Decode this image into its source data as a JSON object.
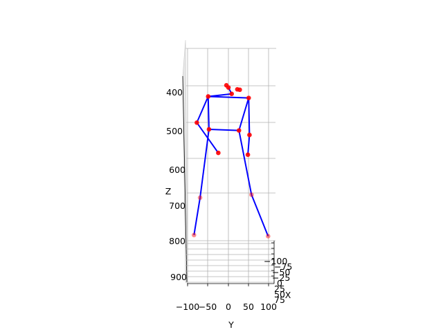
{
  "chart_data": {
    "type": "scatter",
    "projection": "3d",
    "title": "",
    "xlabel": "X",
    "ylabel": "Y",
    "zlabel": "Z",
    "z_inverted": true,
    "grid": true,
    "y_ticks": [
      "−100",
      "−50",
      "0",
      "50",
      "100"
    ],
    "z_ticks": [
      "400",
      "500",
      "600",
      "700",
      "800",
      "900"
    ],
    "x_ticks": [
      "−100",
      "−75",
      "−50",
      "−25",
      "0",
      "25",
      "50",
      "75"
    ],
    "colors": {
      "joint": "#ff0000",
      "bone": "#0000ff",
      "grid": "#b0b0b0"
    },
    "joints": [
      {
        "name": "head-top",
        "y": -5,
        "z": 382
      },
      {
        "name": "head-upper",
        "y": 0,
        "z": 388
      },
      {
        "name": "head-right",
        "y": 22,
        "z": 393
      },
      {
        "name": "head-right-2",
        "y": 28,
        "z": 394
      },
      {
        "name": "neck",
        "y": 8,
        "z": 405
      },
      {
        "name": "left-shoulder",
        "y": -50,
        "z": 412
      },
      {
        "name": "right-shoulder",
        "y": 50,
        "z": 416
      },
      {
        "name": "left-elbow",
        "y": -78,
        "z": 482
      },
      {
        "name": "left-wrist",
        "y": -25,
        "z": 563
      },
      {
        "name": "right-elbow",
        "y": 52,
        "z": 515
      },
      {
        "name": "right-wrist",
        "y": 48,
        "z": 568
      },
      {
        "name": "left-hip",
        "y": -48,
        "z": 500
      },
      {
        "name": "right-hip",
        "y": 26,
        "z": 503
      },
      {
        "name": "left-knee",
        "y": -70,
        "z": 683
      },
      {
        "name": "right-knee",
        "y": 57,
        "z": 675
      },
      {
        "name": "left-ankle",
        "y": -85,
        "z": 783
      },
      {
        "name": "right-ankle",
        "y": 98,
        "z": 786
      }
    ],
    "bones": [
      [
        "left-shoulder",
        "right-shoulder"
      ],
      [
        "left-shoulder",
        "left-elbow"
      ],
      [
        "left-elbow",
        "left-wrist"
      ],
      [
        "right-shoulder",
        "right-elbow"
      ],
      [
        "right-elbow",
        "right-wrist"
      ],
      [
        "left-shoulder",
        "left-hip"
      ],
      [
        "right-shoulder",
        "right-hip"
      ],
      [
        "left-hip",
        "right-hip"
      ],
      [
        "left-hip",
        "left-knee"
      ],
      [
        "left-knee",
        "left-ankle"
      ],
      [
        "right-hip",
        "right-knee"
      ],
      [
        "right-knee",
        "right-ankle"
      ],
      [
        "left-shoulder",
        "neck"
      ],
      [
        "neck",
        "head-upper"
      ]
    ]
  }
}
